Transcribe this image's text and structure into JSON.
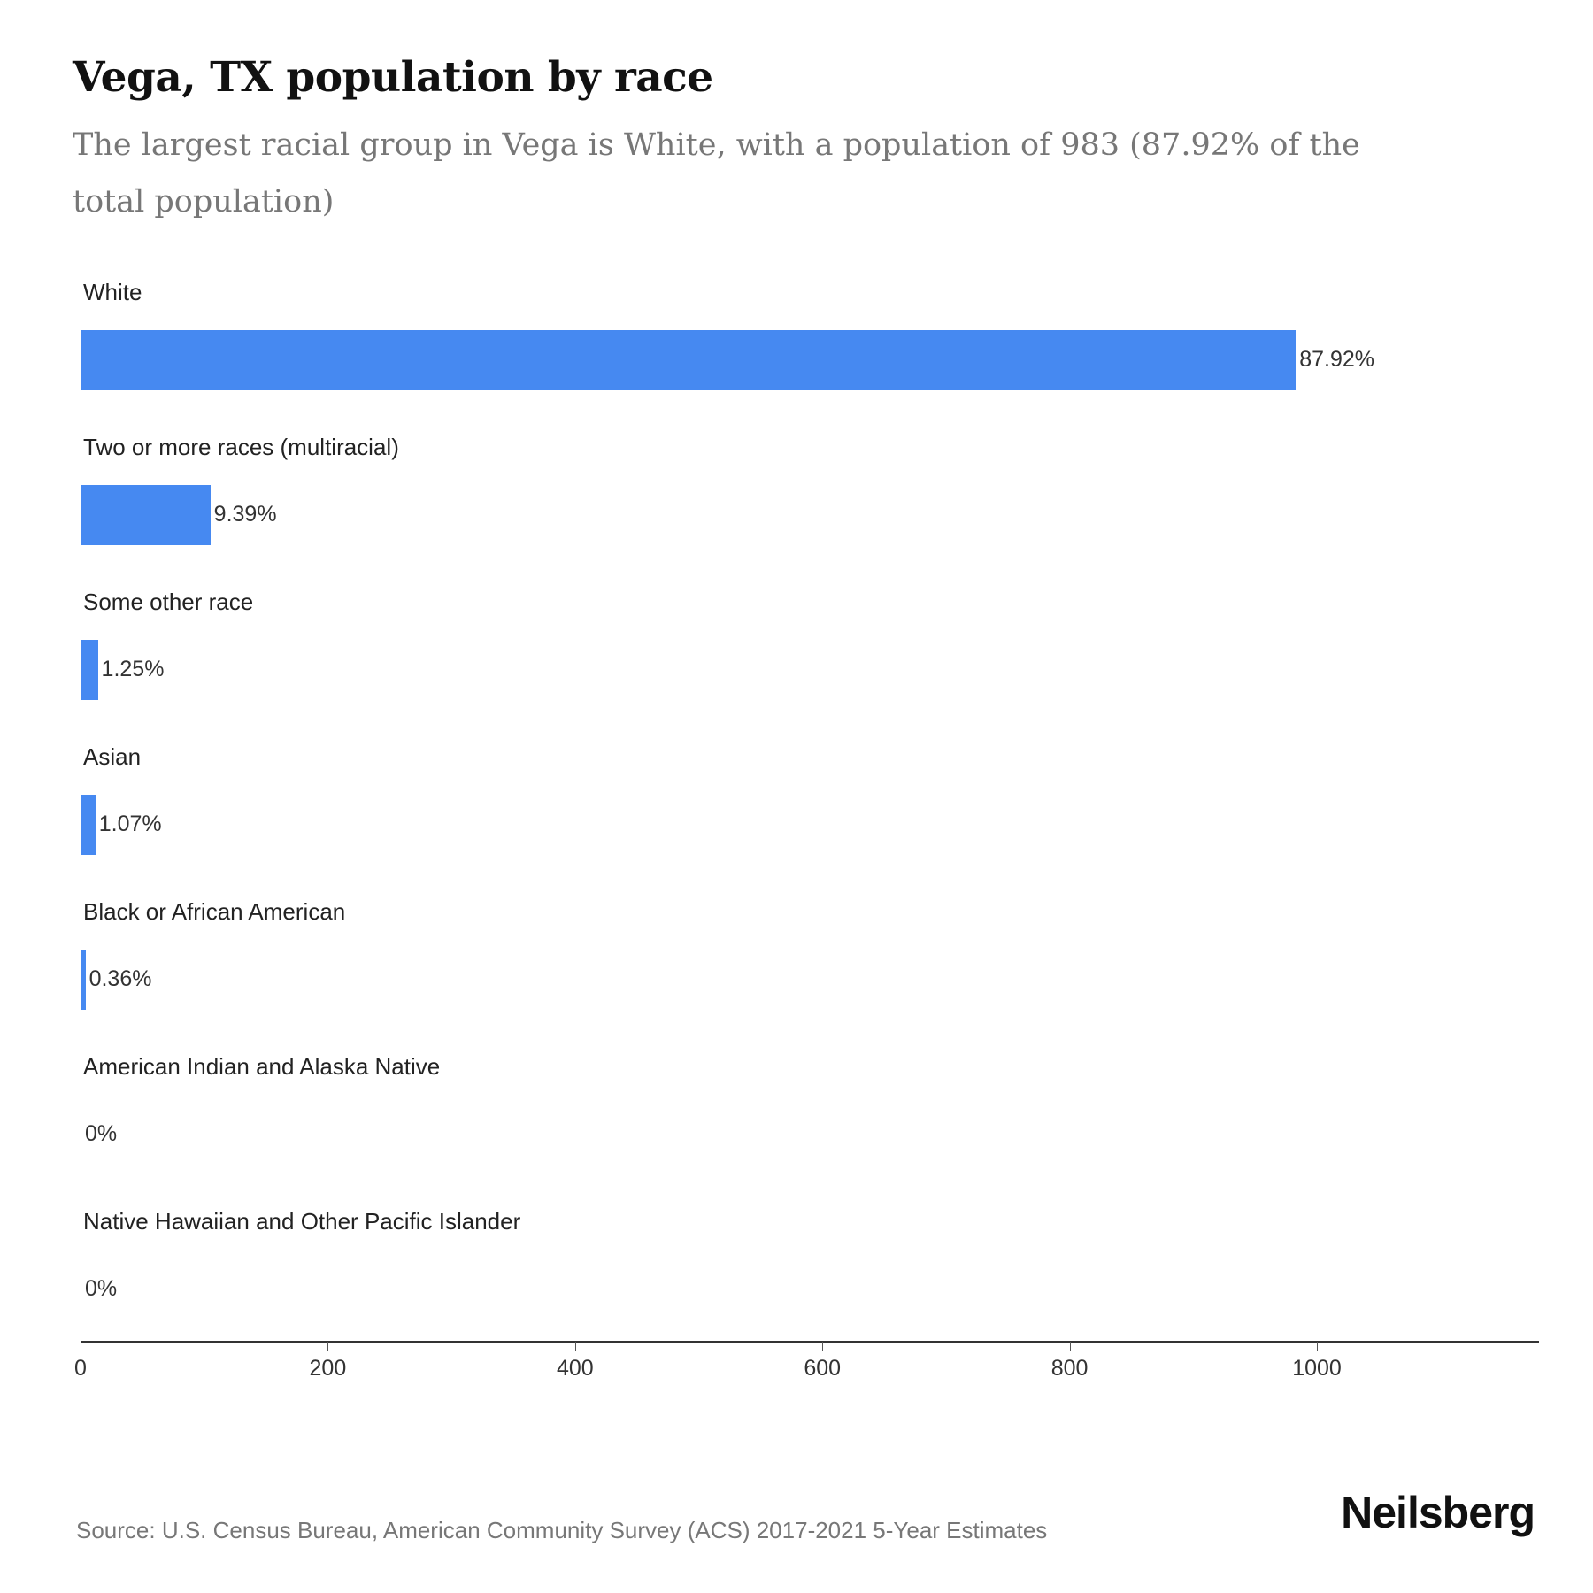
{
  "header": {
    "title": "Vega, TX population by race",
    "subtitle": "The largest racial group in Vega is White, with a population of 983 (87.92% of the total population)"
  },
  "footer": {
    "source": "Source: U.S. Census Bureau, American Community Survey (ACS) 2017-2021 5-Year Estimates",
    "brand": "Neilsberg"
  },
  "colors": {
    "bar": "#4689f1",
    "text": "#222222",
    "subtitle": "#777777"
  },
  "axis": {
    "ticks": [
      {
        "value": 0,
        "label": "0"
      },
      {
        "value": 200,
        "label": "200"
      },
      {
        "value": 400,
        "label": "400"
      },
      {
        "value": 600,
        "label": "600"
      },
      {
        "value": 800,
        "label": "800"
      },
      {
        "value": 1000,
        "label": "1000"
      }
    ]
  },
  "bars": [
    {
      "label": "White",
      "value": 983,
      "pct_label": "87.92%"
    },
    {
      "label": "Two or more races (multiracial)",
      "value": 105,
      "pct_label": "9.39%"
    },
    {
      "label": "Some other race",
      "value": 14,
      "pct_label": "1.25%"
    },
    {
      "label": "Asian",
      "value": 12,
      "pct_label": "1.07%"
    },
    {
      "label": "Black or African American",
      "value": 4,
      "pct_label": "0.36%"
    },
    {
      "label": "American Indian and Alaska Native",
      "value": 0,
      "pct_label": "0%"
    },
    {
      "label": "Native Hawaiian and Other Pacific Islander",
      "value": 0,
      "pct_label": "0%"
    }
  ],
  "chart_data": {
    "type": "bar",
    "orientation": "horizontal",
    "title": "Vega, TX population by race",
    "subtitle": "The largest racial group in Vega is White, with a population of 983 (87.92% of the total population)",
    "categories": [
      "White",
      "Two or more races (multiracial)",
      "Some other race",
      "Asian",
      "Black or African American",
      "American Indian and Alaska Native",
      "Native Hawaiian and Other Pacific Islander"
    ],
    "values": [
      983,
      105,
      14,
      12,
      4,
      0,
      0
    ],
    "percentages": [
      87.92,
      9.39,
      1.25,
      1.07,
      0.36,
      0,
      0
    ],
    "data_labels": [
      "87.92%",
      "9.39%",
      "1.25%",
      "1.07%",
      "0.36%",
      "0%",
      "0%"
    ],
    "xlabel": "",
    "ylabel": "",
    "xlim": [
      0,
      1180
    ],
    "xticks": [
      0,
      200,
      400,
      600,
      800,
      1000
    ],
    "grid": false,
    "legend": "none",
    "source": "Source: U.S. Census Bureau, American Community Survey (ACS) 2017-2021 5-Year Estimates"
  }
}
